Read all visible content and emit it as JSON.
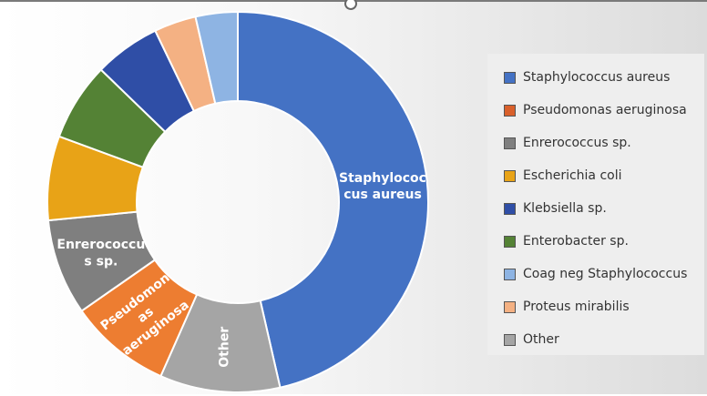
{
  "chart_data": {
    "type": "pie",
    "subtype": "donut",
    "title": "",
    "legend_position": "right",
    "slices": [
      {
        "name": "Staphylococcus aureus",
        "value": 45.5,
        "color": "#4472C4",
        "label": "Staphylococcus aureus"
      },
      {
        "name": "Other",
        "value": 10.0,
        "color": "#A5A5A5",
        "label": "Other"
      },
      {
        "name": "Pseudomonas aeruginosa",
        "value": 8.5,
        "color": "#ED7D31",
        "label": "Pseudomonas aeruginosa"
      },
      {
        "name": "Enrerococcus sp.",
        "value": 8.0,
        "color": "#7F7F7F",
        "label": "Enrerococcus sp."
      },
      {
        "name": "Escherichia coli",
        "value": 7.0,
        "color": "#E8A317",
        "label": ""
      },
      {
        "name": "Enterobacter sp.",
        "value": 6.5,
        "color": "#548235",
        "label": ""
      },
      {
        "name": "Klebsiella sp.",
        "value": 5.5,
        "color": "#2F4EA6",
        "label": ""
      },
      {
        "name": "Proteus mirabilis",
        "value": 3.5,
        "color": "#F4B183",
        "label": ""
      },
      {
        "name": "Coag neg Staphylococcus",
        "value": 3.5,
        "color": "#8EB4E3",
        "label": ""
      }
    ],
    "legend": [
      {
        "name": "Staphylococcus aureus",
        "color": "#4472C4"
      },
      {
        "name": "Pseudomonas aeruginosa",
        "color": "#D9602B"
      },
      {
        "name": "Enrerococcus sp.",
        "color": "#7F7F7F"
      },
      {
        "name": "Escherichia coli",
        "color": "#E8A317"
      },
      {
        "name": "Klebsiella sp.",
        "color": "#2F4EA6"
      },
      {
        "name": "Enterobacter sp.",
        "color": "#548235"
      },
      {
        "name": "Coag neg Staphylococcus",
        "color": "#8EB4E3"
      },
      {
        "name": "Proteus mirabilis",
        "color": "#F4B183"
      },
      {
        "name": "Other",
        "color": "#A5A5A5"
      }
    ]
  }
}
